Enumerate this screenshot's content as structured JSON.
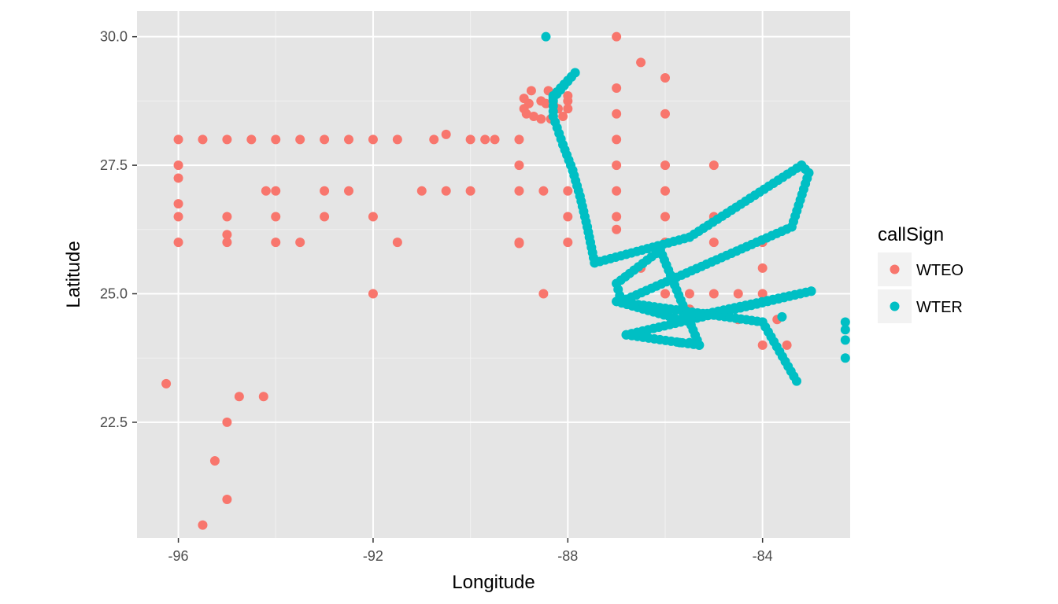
{
  "chart_data": {
    "type": "scatter",
    "xlabel": "Longitude",
    "ylabel": "Latitude",
    "xlim": [
      -96.85,
      -82.2
    ],
    "ylim": [
      20.25,
      30.5
    ],
    "xticks": [
      -96,
      -92,
      -88,
      -84
    ],
    "xtick_labels": [
      "-96",
      "-92",
      "-88",
      "-84"
    ],
    "yticks": [
      22.5,
      25.0,
      27.5,
      30.0
    ],
    "ytick_labels": [
      "22.5",
      "25.0",
      "27.5",
      "30.0"
    ],
    "grid": true,
    "panel_background": "#e5e5e5",
    "legend": {
      "title": "callSign",
      "position": "right",
      "entries": [
        "WTEO",
        "WTER"
      ]
    },
    "series": [
      {
        "name": "WTEO",
        "color": "#f8766d",
        "points": [
          [
            -96,
            28
          ],
          [
            -95.5,
            28
          ],
          [
            -95,
            28
          ],
          [
            -94.5,
            28
          ],
          [
            -94,
            28
          ],
          [
            -93.5,
            28
          ],
          [
            -93,
            28
          ],
          [
            -92.5,
            28
          ],
          [
            -92,
            28
          ],
          [
            -91.5,
            28
          ],
          [
            -90.75,
            28
          ],
          [
            -90.5,
            28.1
          ],
          [
            -90,
            28
          ],
          [
            -89.7,
            28
          ],
          [
            -89.5,
            28
          ],
          [
            -89,
            28
          ],
          [
            -96,
            27.5
          ],
          [
            -96,
            27.25
          ],
          [
            -96,
            26.75
          ],
          [
            -96,
            26.5
          ],
          [
            -96,
            26
          ],
          [
            -95,
            26.5
          ],
          [
            -95,
            26.15
          ],
          [
            -95,
            26
          ],
          [
            -94.2,
            27
          ],
          [
            -94,
            27
          ],
          [
            -94,
            26.5
          ],
          [
            -94,
            26
          ],
          [
            -93.5,
            26
          ],
          [
            -93,
            27
          ],
          [
            -93,
            26.5
          ],
          [
            -92.5,
            27
          ],
          [
            -92,
            26.5
          ],
          [
            -91.5,
            26
          ],
          [
            -92,
            25
          ],
          [
            -91,
            27
          ],
          [
            -90.5,
            27
          ],
          [
            -90,
            27
          ],
          [
            -89,
            27.5
          ],
          [
            -89,
            27
          ],
          [
            -89,
            26
          ],
          [
            -89,
            25.98
          ],
          [
            -88.5,
            27
          ],
          [
            -88.5,
            25
          ],
          [
            -88,
            27
          ],
          [
            -88,
            26.5
          ],
          [
            -88,
            26
          ],
          [
            -87,
            30
          ],
          [
            -86.5,
            29.5
          ],
          [
            -86,
            29.2
          ],
          [
            -87,
            29
          ],
          [
            -86,
            28.5
          ],
          [
            -87,
            28.5
          ],
          [
            -87,
            28
          ],
          [
            -87,
            27.5
          ],
          [
            -86,
            27.5
          ],
          [
            -85,
            27.5
          ],
          [
            -87,
            27
          ],
          [
            -86,
            27
          ],
          [
            -87,
            26.5
          ],
          [
            -87,
            26.25
          ],
          [
            -86,
            26.5
          ],
          [
            -85,
            26.5
          ],
          [
            -86,
            26
          ],
          [
            -85,
            26
          ],
          [
            -84,
            26
          ],
          [
            -86.5,
            25.5
          ],
          [
            -84,
            25.5
          ],
          [
            -86,
            25
          ],
          [
            -85.5,
            25
          ],
          [
            -85,
            25
          ],
          [
            -84.5,
            25
          ],
          [
            -84,
            25
          ],
          [
            -85.5,
            24.7
          ],
          [
            -84.5,
            24.5
          ],
          [
            -83.7,
            24.5
          ],
          [
            -84,
            24
          ],
          [
            -83.5,
            24
          ],
          [
            -96.25,
            23.25
          ],
          [
            -94.75,
            23
          ],
          [
            -94.25,
            23
          ],
          [
            -95,
            22.5
          ],
          [
            -95.25,
            21.75
          ],
          [
            -95,
            21
          ],
          [
            -95.5,
            20.5
          ],
          [
            -88.75,
            28.95
          ],
          [
            -88.4,
            28.95
          ],
          [
            -88.9,
            28.8
          ],
          [
            -88.8,
            28.7
          ],
          [
            -88.9,
            28.6
          ],
          [
            -88.85,
            28.5
          ],
          [
            -88.7,
            28.45
          ],
          [
            -88.55,
            28.4
          ],
          [
            -88.35,
            28.4
          ],
          [
            -88.1,
            28.45
          ],
          [
            -88,
            28.6
          ],
          [
            -88,
            28.75
          ],
          [
            -88,
            28.85
          ],
          [
            -88.55,
            28.75
          ],
          [
            -88.45,
            28.7
          ],
          [
            -88.3,
            28.7
          ],
          [
            -88.2,
            28.6
          ]
        ]
      },
      {
        "name": "WTER",
        "color": "#00bfc4",
        "points": [
          [
            -88.45,
            30
          ],
          [
            -82.3,
            24.45
          ],
          [
            -82.3,
            24.3
          ],
          [
            -82.3,
            24.1
          ],
          [
            -82.3,
            23.75
          ],
          [
            -83.6,
            24.55
          ],
          [
            -85.5,
            24.05
          ],
          [
            -85.7,
            24.05
          ]
        ],
        "path": [
          [
            -88.3,
            28.8
          ],
          [
            -87.85,
            29.3
          ],
          [
            -88.3,
            28.85
          ],
          [
            -88.3,
            28.45
          ],
          [
            -88.1,
            27.9
          ],
          [
            -87.9,
            27.4
          ],
          [
            -87.75,
            26.9
          ],
          [
            -87.6,
            26.3
          ],
          [
            -87.45,
            25.6
          ],
          [
            -85.5,
            26.1
          ],
          [
            -83.2,
            27.5
          ],
          [
            -83.05,
            27.35
          ],
          [
            -83.4,
            26.3
          ],
          [
            -86.9,
            24.85
          ],
          [
            -87,
            25.2
          ],
          [
            -86.1,
            25.85
          ],
          [
            -85.3,
            24.0
          ],
          [
            -86.8,
            24.2
          ],
          [
            -83.0,
            25.05
          ],
          [
            -85.7,
            24.5
          ],
          [
            -87.0,
            24.85
          ],
          [
            -84.0,
            24.45
          ],
          [
            -83.3,
            23.3
          ]
        ]
      }
    ]
  }
}
